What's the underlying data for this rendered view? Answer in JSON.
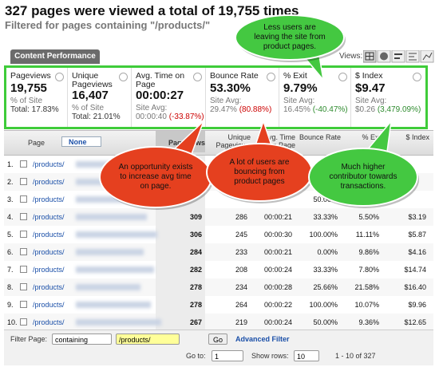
{
  "header": {
    "title": "327 pages were viewed a total of 19,755 times",
    "subtitle": "Filtered for pages containing \"/products/\""
  },
  "tab": "Content Performance",
  "views_label": "Views:",
  "summary": [
    {
      "label": "Pageviews",
      "value": "19,755",
      "note": "% of Site",
      "base": "Total: 17.83%"
    },
    {
      "label": "Unique Pageviews",
      "value": "16,407",
      "note": "% of Site",
      "base": "Total: 21.01%"
    },
    {
      "label": "Avg. Time on Page",
      "value": "00:00:27",
      "note": "Site Avg:",
      "base": "00:00:40",
      "change": "(-33.87%)",
      "change_color": "#cc0000"
    },
    {
      "label": "Bounce Rate",
      "value": "53.30%",
      "note": "Site Avg:",
      "base": "29.47%",
      "change": "(80.88%)",
      "change_color": "#cc0000"
    },
    {
      "label": "% Exit",
      "value": "9.79%",
      "note": "Site Avg:",
      "base": "16.45%",
      "change": "(-40.47%)",
      "change_color": "#2e8b2e"
    },
    {
      "label": "$ Index",
      "value": "$9.47",
      "note": "Site Avg:",
      "base": "$0.26",
      "change": "(3,479.09%)",
      "change_color": "#2e8b2e"
    }
  ],
  "table": {
    "page_header": "Page",
    "secondary_dimension": "None",
    "columns": [
      "Pageviews",
      "Unique Pageviews",
      "Avg. Time on Page",
      "Bounce Rate",
      "% Exit",
      "$ Index"
    ],
    "rows": [
      {
        "index": "1.",
        "page": "/products/",
        "cells": [
          null,
          null,
          null,
          null,
          null,
          null
        ]
      },
      {
        "index": "2.",
        "page": "/products/",
        "cells": [
          null,
          null,
          null,
          null,
          null,
          null
        ]
      },
      {
        "index": "3.",
        "page": "/products/",
        "cells": [
          null,
          null,
          null,
          "50.00%",
          null,
          null
        ]
      },
      {
        "index": "4.",
        "page": "/products/",
        "cells": [
          "309",
          "286",
          "00:00:21",
          "33.33%",
          "5.50%",
          "$3.19"
        ]
      },
      {
        "index": "5.",
        "page": "/products/",
        "cells": [
          "306",
          "245",
          "00:00:30",
          "100.00%",
          "11.11%",
          "$5.87"
        ]
      },
      {
        "index": "6.",
        "page": "/products/",
        "cells": [
          "284",
          "233",
          "00:00:21",
          "0.00%",
          "9.86%",
          "$4.16"
        ]
      },
      {
        "index": "7.",
        "page": "/products/",
        "cells": [
          "282",
          "208",
          "00:00:24",
          "33.33%",
          "7.80%",
          "$14.74"
        ]
      },
      {
        "index": "8.",
        "page": "/products/",
        "cells": [
          "278",
          "234",
          "00:00:28",
          "25.66%",
          "21.58%",
          "$16.40"
        ]
      },
      {
        "index": "9.",
        "page": "/products/",
        "cells": [
          "278",
          "264",
          "00:00:22",
          "100.00%",
          "10.07%",
          "$9.96"
        ]
      },
      {
        "index": "10.",
        "page": "/products/",
        "cells": [
          "267",
          "219",
          "00:00:24",
          "50.00%",
          "9.36%",
          "$12.65"
        ]
      }
    ]
  },
  "callouts": [
    {
      "text": "Less users are leaving the site from product pages.",
      "color": "#44c841"
    },
    {
      "text": "An opportunity exists to increase avg time on page.",
      "color": "#e5401f"
    },
    {
      "text": "A lot of users are bouncing from product pages",
      "color": "#e5401f"
    },
    {
      "text": "Much higher contributor towards transactions.",
      "color": "#44c841"
    }
  ],
  "footer": {
    "filter_label": "Filter Page:",
    "filter_mode": "containing",
    "filter_value": "/products/",
    "go": "Go",
    "advanced": "Advanced Filter",
    "goto_label": "Go to:",
    "goto_value": "1",
    "rows_label": "Show rows:",
    "rows_value": "10",
    "range": "1 - 10 of 327"
  }
}
